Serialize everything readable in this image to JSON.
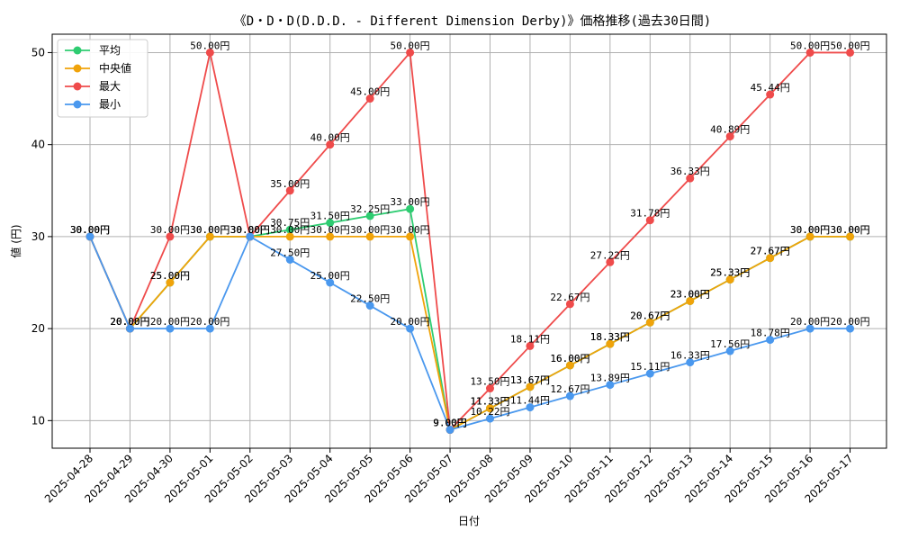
{
  "chart_data": {
    "type": "line",
    "title": "《D・D・D(D.D.D. - Different Dimension Derby)》価格推移(過去30日間)",
    "xlabel": "日付",
    "ylabel": "値 (円)",
    "ylim": [
      7,
      52
    ],
    "yticks": [
      10,
      20,
      30,
      40,
      50
    ],
    "grid": true,
    "legend_position": "top-left",
    "value_suffix": "円",
    "categories": [
      "2025-04-28",
      "2025-04-29",
      "2025-04-30",
      "2025-05-01",
      "2025-05-02",
      "2025-05-03",
      "2025-05-04",
      "2025-05-05",
      "2025-05-06",
      "2025-05-07",
      "2025-05-08",
      "2025-05-09",
      "2025-05-10",
      "2025-05-11",
      "2025-05-12",
      "2025-05-13",
      "2025-05-14",
      "2025-05-15",
      "2025-05-16",
      "2025-05-17"
    ],
    "series": [
      {
        "name": "平均",
        "color": "#2ecc71",
        "values": [
          30.0,
          20.0,
          25.0,
          30.0,
          30.0,
          30.75,
          31.5,
          32.25,
          33.0,
          9.0,
          11.33,
          13.67,
          16.0,
          18.33,
          20.67,
          23.0,
          25.33,
          27.67,
          30.0,
          30.0
        ]
      },
      {
        "name": "中央値",
        "color": "#f0a30a",
        "values": [
          30.0,
          20.0,
          25.0,
          30.0,
          30.0,
          30.0,
          30.0,
          30.0,
          30.0,
          9.0,
          11.33,
          13.67,
          16.0,
          18.33,
          20.67,
          23.0,
          25.33,
          27.67,
          30.0,
          30.0
        ]
      },
      {
        "name": "最大",
        "color": "#ef4b4b",
        "values": [
          30.0,
          20.0,
          30.0,
          50.0,
          30.0,
          35.0,
          40.0,
          45.0,
          50.0,
          9.0,
          13.5,
          18.11,
          22.67,
          27.22,
          31.78,
          36.33,
          40.89,
          45.44,
          50.0,
          50.0
        ]
      },
      {
        "name": "最小",
        "color": "#4a98ee",
        "values": [
          30.0,
          20.0,
          20.0,
          20.0,
          30.0,
          27.5,
          25.0,
          22.5,
          20.0,
          9.0,
          10.22,
          11.44,
          12.67,
          13.89,
          15.11,
          16.33,
          17.56,
          18.78,
          20.0,
          20.0
        ]
      }
    ]
  }
}
